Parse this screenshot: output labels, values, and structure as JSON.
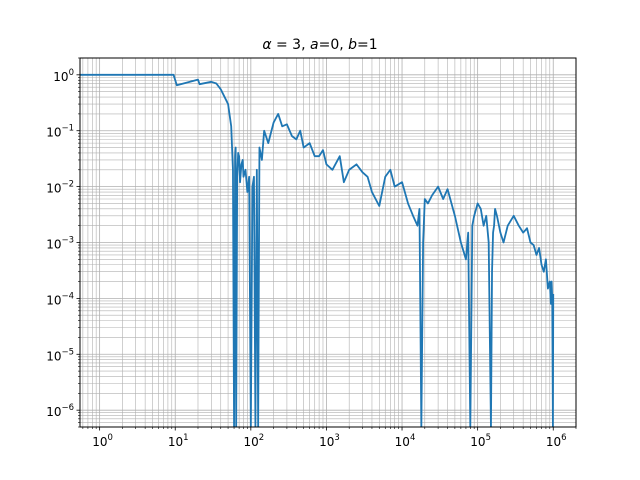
{
  "chart_data": {
    "type": "line",
    "title": "α = 3, a=0, b=1",
    "title_parts": {
      "alpha": "α",
      "alpha_eq": " = 3, ",
      "a": "a",
      "a_eq": "=0, ",
      "b": "b",
      "b_eq": "=1"
    },
    "x_scale": "log",
    "y_scale": "log",
    "xlim": [
      0.55,
      2000000
    ],
    "ylim": [
      5e-07,
      2
    ],
    "grid": true,
    "grid_minor": true,
    "xlabel": "",
    "ylabel": "",
    "x_ticks": [
      {
        "base": "10",
        "exp": "0",
        "value": 1
      },
      {
        "base": "10",
        "exp": "1",
        "value": 10
      },
      {
        "base": "10",
        "exp": "2",
        "value": 100
      },
      {
        "base": "10",
        "exp": "3",
        "value": 1000
      },
      {
        "base": "10",
        "exp": "4",
        "value": 10000
      },
      {
        "base": "10",
        "exp": "5",
        "value": 100000
      },
      {
        "base": "10",
        "exp": "6",
        "value": 1000000
      }
    ],
    "y_ticks": [
      {
        "base": "10",
        "exp": "0",
        "value": 1
      },
      {
        "base": "10",
        "exp": "−1",
        "value": 0.1
      },
      {
        "base": "10",
        "exp": "−2",
        "value": 0.01
      },
      {
        "base": "10",
        "exp": "−3",
        "value": 0.001
      },
      {
        "base": "10",
        "exp": "−4",
        "value": 0.0001
      },
      {
        "base": "10",
        "exp": "−5",
        "value": 1e-05
      },
      {
        "base": "10",
        "exp": "−6",
        "value": 1e-06
      }
    ],
    "line_color": "#1f77b4",
    "series": [
      {
        "x": [
          0.55,
          1,
          2,
          5,
          9.5,
          10.5,
          14,
          20,
          21,
          30,
          35,
          40,
          45,
          50,
          55,
          58,
          60,
          62,
          63,
          64,
          66,
          68,
          70,
          72,
          75,
          78,
          80,
          85,
          90,
          95,
          100,
          105,
          110,
          115,
          120,
          125,
          130,
          140,
          150,
          170,
          200,
          230,
          260,
          300,
          350,
          400,
          450,
          500,
          600,
          700,
          800,
          900,
          1000,
          1200,
          1500,
          1700,
          2000,
          2500,
          3000,
          3500,
          4000,
          5000,
          6000,
          7000,
          8000,
          10000,
          12000,
          14000,
          16000,
          17000,
          18000,
          19000,
          20000,
          22000,
          25000,
          30000,
          35000,
          40000,
          50000,
          60000,
          70000,
          75000,
          80000,
          85000,
          90000,
          100000,
          110000,
          120000,
          130000,
          140000,
          150000,
          155000,
          160000,
          165000,
          170000,
          180000,
          200000,
          220000,
          250000,
          300000,
          350000,
          400000,
          450000,
          500000,
          550000,
          600000,
          650000,
          700000,
          750000,
          800000,
          850000,
          900000,
          930000,
          950000,
          970000,
          990000,
          1000000
        ],
        "y": [
          1.0,
          1.0,
          1.0,
          1.0,
          1.0,
          0.65,
          0.72,
          0.82,
          0.68,
          0.75,
          0.7,
          0.55,
          0.4,
          0.3,
          0.12,
          0.02,
          5e-07,
          0.035,
          0.05,
          5e-07,
          0.015,
          0.04,
          0.035,
          0.012,
          0.025,
          0.03,
          0.015,
          0.02,
          0.008,
          0.015,
          5e-07,
          0.01,
          0.015,
          5e-07,
          0.02,
          5e-07,
          0.05,
          0.03,
          0.1,
          0.06,
          0.14,
          0.2,
          0.12,
          0.13,
          0.08,
          0.07,
          0.1,
          0.05,
          0.06,
          0.035,
          0.035,
          0.045,
          0.025,
          0.02,
          0.035,
          0.012,
          0.02,
          0.025,
          0.018,
          0.015,
          0.008,
          0.0045,
          0.015,
          0.02,
          0.01,
          0.012,
          0.005,
          0.003,
          0.002,
          0.004,
          5e-07,
          0.001,
          0.006,
          0.005,
          0.007,
          0.01,
          0.006,
          0.009,
          0.003,
          0.001,
          0.0005,
          0.0015,
          5e-07,
          0.002,
          0.003,
          0.005,
          0.004,
          0.002,
          0.003,
          0.001,
          5e-07,
          0.0003,
          0.0015,
          0.002,
          0.004,
          0.003,
          0.0015,
          0.001,
          0.002,
          0.003,
          0.002,
          0.0015,
          0.0018,
          0.001,
          0.0009,
          0.0006,
          0.0008,
          0.0004,
          0.0003,
          0.0005,
          0.00015,
          0.0002,
          8e-05,
          0.0002,
          0.0001,
          5e-07,
          0.00012
        ]
      }
    ]
  }
}
